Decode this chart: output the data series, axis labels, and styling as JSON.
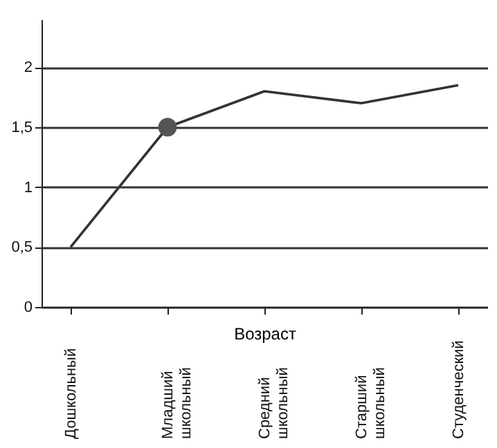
{
  "chart_data": {
    "type": "line",
    "xlabel": "Возраст",
    "categories": [
      "Дошкольный",
      "Младший школьный",
      "Средний школьный",
      "Старший школьный",
      "Студенческий"
    ],
    "series": [
      {
        "color": "#333333",
        "values": [
          0.5,
          1.5,
          1.8,
          1.7,
          1.85
        ],
        "marker": "none"
      },
      {
        "type": "scatter",
        "color": "#555555",
        "values": [
          null,
          1.5,
          null,
          null,
          null
        ],
        "marker": "circle"
      }
    ],
    "ylim": [
      0,
      2.4
    ],
    "yticks": [
      0,
      {
        "value": 0.5,
        "label": "0,5"
      },
      1,
      {
        "value": 1.5,
        "label": "1,5"
      },
      2
    ],
    "grid": "y"
  }
}
